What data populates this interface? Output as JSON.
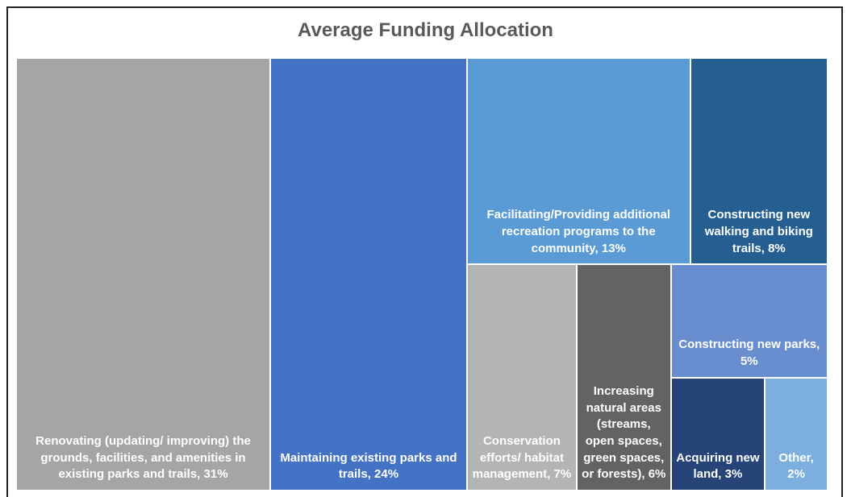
{
  "chart_data": {
    "type": "treemap",
    "title": "Average Funding Allocation",
    "categories": [
      "Renovating (updating/ improving) the grounds, facilities, and amenities in existing parks and trails,",
      "Maintaining existing parks and trails,",
      "Facilitating/Providing additional recreation programs to the community,",
      "Constructing new walking and biking trails,",
      "Conservation efforts/ habitat management,",
      "Increasing natural areas (streams, open spaces, green spaces, or forests),",
      "Constructing new parks,",
      "Acquiring new land,",
      "Other,"
    ],
    "values": [
      31,
      24,
      13,
      8,
      7,
      6,
      5,
      3,
      2
    ],
    "value_labels": [
      "31%",
      "24%",
      "13%",
      "8%",
      "7%",
      "6%",
      "5%",
      "3%",
      "2%"
    ],
    "colors": [
      "#a5a5a5",
      "#4472c4",
      "#5b9bd5",
      "#255e91",
      "#b4b4b4",
      "#636363",
      "#698ed0",
      "#264478",
      "#7cafdd"
    ]
  }
}
